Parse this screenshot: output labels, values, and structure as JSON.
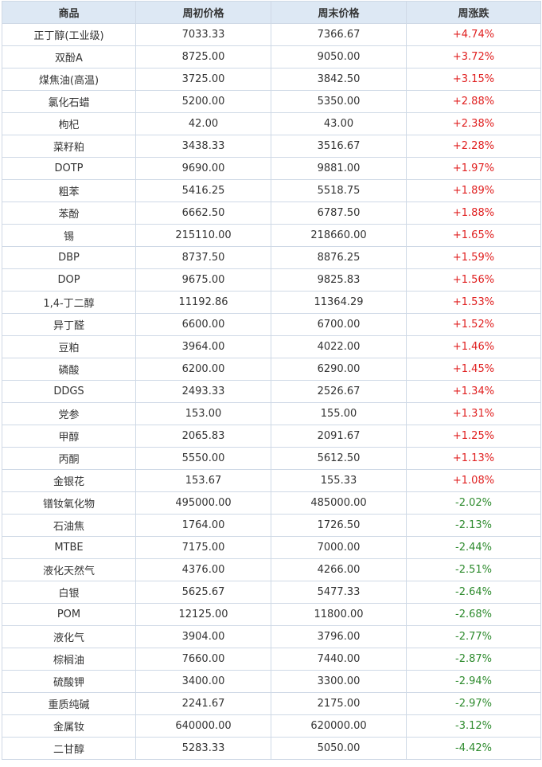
{
  "header": {
    "commodity": "商品",
    "week_start_price": "周初价格",
    "week_end_price": "周末价格",
    "weekly_change": "周涨跌"
  },
  "colors": {
    "up": "#e02020",
    "down": "#2e8b2e",
    "header_bg": "#dde8f4",
    "border": "#cfd9e6"
  },
  "rows": [
    {
      "name": "正丁醇(工业级)",
      "start": "7033.33",
      "end": "7366.67",
      "change": "+4.74%",
      "dir": "up"
    },
    {
      "name": "双酚A",
      "start": "8725.00",
      "end": "9050.00",
      "change": "+3.72%",
      "dir": "up"
    },
    {
      "name": "煤焦油(高温)",
      "start": "3725.00",
      "end": "3842.50",
      "change": "+3.15%",
      "dir": "up"
    },
    {
      "name": "氯化石蜡",
      "start": "5200.00",
      "end": "5350.00",
      "change": "+2.88%",
      "dir": "up"
    },
    {
      "name": "枸杞",
      "start": "42.00",
      "end": "43.00",
      "change": "+2.38%",
      "dir": "up"
    },
    {
      "name": "菜籽粕",
      "start": "3438.33",
      "end": "3516.67",
      "change": "+2.28%",
      "dir": "up"
    },
    {
      "name": "DOTP",
      "start": "9690.00",
      "end": "9881.00",
      "change": "+1.97%",
      "dir": "up"
    },
    {
      "name": "粗苯",
      "start": "5416.25",
      "end": "5518.75",
      "change": "+1.89%",
      "dir": "up"
    },
    {
      "name": "苯酚",
      "start": "6662.50",
      "end": "6787.50",
      "change": "+1.88%",
      "dir": "up"
    },
    {
      "name": "锡",
      "start": "215110.00",
      "end": "218660.00",
      "change": "+1.65%",
      "dir": "up"
    },
    {
      "name": "DBP",
      "start": "8737.50",
      "end": "8876.25",
      "change": "+1.59%",
      "dir": "up"
    },
    {
      "name": "DOP",
      "start": "9675.00",
      "end": "9825.83",
      "change": "+1.56%",
      "dir": "up"
    },
    {
      "name": "1,4-丁二醇",
      "start": "11192.86",
      "end": "11364.29",
      "change": "+1.53%",
      "dir": "up"
    },
    {
      "name": "异丁醛",
      "start": "6600.00",
      "end": "6700.00",
      "change": "+1.52%",
      "dir": "up"
    },
    {
      "name": "豆粕",
      "start": "3964.00",
      "end": "4022.00",
      "change": "+1.46%",
      "dir": "up"
    },
    {
      "name": "磷酸",
      "start": "6200.00",
      "end": "6290.00",
      "change": "+1.45%",
      "dir": "up"
    },
    {
      "name": "DDGS",
      "start": "2493.33",
      "end": "2526.67",
      "change": "+1.34%",
      "dir": "up"
    },
    {
      "name": "党参",
      "start": "153.00",
      "end": "155.00",
      "change": "+1.31%",
      "dir": "up"
    },
    {
      "name": "甲醇",
      "start": "2065.83",
      "end": "2091.67",
      "change": "+1.25%",
      "dir": "up"
    },
    {
      "name": "丙酮",
      "start": "5550.00",
      "end": "5612.50",
      "change": "+1.13%",
      "dir": "up"
    },
    {
      "name": "金银花",
      "start": "153.67",
      "end": "155.33",
      "change": "+1.08%",
      "dir": "up"
    },
    {
      "name": "镨钕氧化物",
      "start": "495000.00",
      "end": "485000.00",
      "change": "-2.02%",
      "dir": "down"
    },
    {
      "name": "石油焦",
      "start": "1764.00",
      "end": "1726.50",
      "change": "-2.13%",
      "dir": "down"
    },
    {
      "name": "MTBE",
      "start": "7175.00",
      "end": "7000.00",
      "change": "-2.44%",
      "dir": "down"
    },
    {
      "name": "液化天然气",
      "start": "4376.00",
      "end": "4266.00",
      "change": "-2.51%",
      "dir": "down"
    },
    {
      "name": "白银",
      "start": "5625.67",
      "end": "5477.33",
      "change": "-2.64%",
      "dir": "down"
    },
    {
      "name": "POM",
      "start": "12125.00",
      "end": "11800.00",
      "change": "-2.68%",
      "dir": "down"
    },
    {
      "name": "液化气",
      "start": "3904.00",
      "end": "3796.00",
      "change": "-2.77%",
      "dir": "down"
    },
    {
      "name": "棕榈油",
      "start": "7660.00",
      "end": "7440.00",
      "change": "-2.87%",
      "dir": "down"
    },
    {
      "name": "硫酸钾",
      "start": "3400.00",
      "end": "3300.00",
      "change": "-2.94%",
      "dir": "down"
    },
    {
      "name": "重质纯碱",
      "start": "2241.67",
      "end": "2175.00",
      "change": "-2.97%",
      "dir": "down"
    },
    {
      "name": "金属钕",
      "start": "640000.00",
      "end": "620000.00",
      "change": "-3.12%",
      "dir": "down"
    },
    {
      "name": "二甘醇",
      "start": "5283.33",
      "end": "5050.00",
      "change": "-4.42%",
      "dir": "down"
    }
  ]
}
